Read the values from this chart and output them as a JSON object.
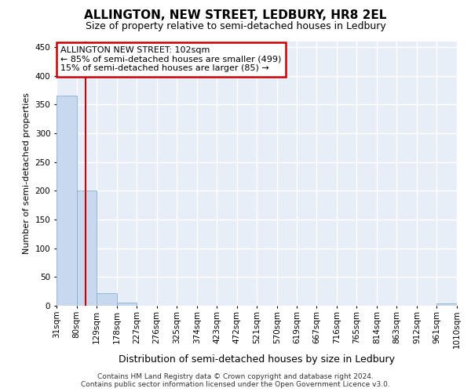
{
  "title": "ALLINGTON, NEW STREET, LEDBURY, HR8 2EL",
  "subtitle": "Size of property relative to semi-detached houses in Ledbury",
  "xlabel": "Distribution of semi-detached houses by size in Ledbury",
  "ylabel": "Number of semi-detached properties",
  "annotation_title": "ALLINGTON NEW STREET: 102sqm",
  "annotation_line1": "← 85% of semi-detached houses are smaller (499)",
  "annotation_line2": "15% of semi-detached houses are larger (85) →",
  "footer1": "Contains HM Land Registry data © Crown copyright and database right 2024.",
  "footer2": "Contains public sector information licensed under the Open Government Licence v3.0.",
  "bar_edges": [
    31,
    80,
    129,
    178,
    227,
    276,
    325,
    374,
    423,
    472,
    521,
    570,
    619,
    667,
    716,
    765,
    814,
    863,
    912,
    961,
    1010
  ],
  "bar_values": [
    365,
    200,
    22,
    6,
    0,
    0,
    0,
    0,
    0,
    0,
    0,
    0,
    0,
    0,
    0,
    0,
    0,
    0,
    0,
    4,
    0
  ],
  "bar_color": "#c8d8ee",
  "bar_edgecolor": "#8ab0d0",
  "vline_x": 102,
  "vline_color": "#cc0000",
  "annotation_box_color": "#cc0000",
  "ylim": [
    0,
    460
  ],
  "xlim": [
    31,
    1010
  ],
  "bg_color": "#e8eef8",
  "grid_color": "#ffffff",
  "tick_labels": [
    "31sqm",
    "80sqm",
    "129sqm",
    "178sqm",
    "227sqm",
    "276sqm",
    "325sqm",
    "374sqm",
    "423sqm",
    "472sqm",
    "521sqm",
    "570sqm",
    "619sqm",
    "667sqm",
    "716sqm",
    "765sqm",
    "814sqm",
    "863sqm",
    "912sqm",
    "961sqm",
    "1010sqm"
  ],
  "yticks": [
    0,
    50,
    100,
    150,
    200,
    250,
    300,
    350,
    400,
    450
  ],
  "title_fontsize": 11,
  "subtitle_fontsize": 9,
  "ylabel_fontsize": 8,
  "xlabel_fontsize": 9,
  "footer_fontsize": 6.5,
  "tick_fontsize": 7.5
}
